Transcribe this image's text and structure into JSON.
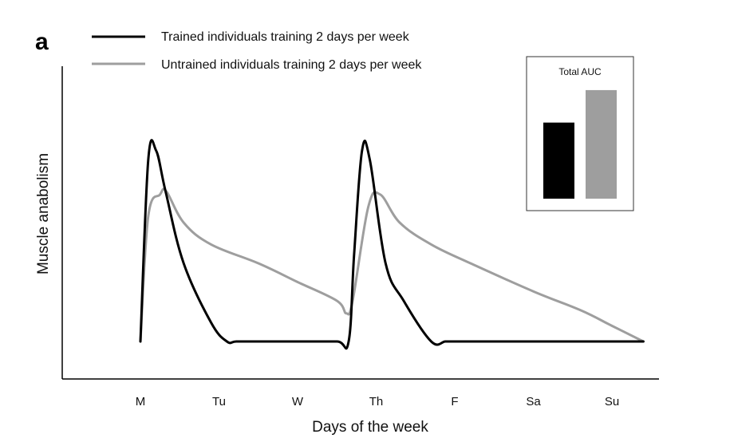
{
  "panel_label": "a",
  "chart_data": [
    {
      "type": "line",
      "title": "",
      "xlabel": "Days of the week",
      "ylabel": "Muscle anabolism",
      "categories": [
        "M",
        "Tu",
        "W",
        "Th",
        "F",
        "Sa",
        "Su"
      ],
      "xlim": [
        0,
        6.4
      ],
      "ylim": [
        0,
        100
      ],
      "grid": false,
      "legend": "top-left",
      "series": [
        {
          "name": "Trained individuals training 2 days per week",
          "color": "#000000",
          "x": [
            0,
            0.1,
            0.2,
            0.32,
            0.55,
            0.9,
            1.1,
            1.22,
            1.5,
            2.0,
            2.5,
            2.65,
            2.72,
            2.82,
            2.92,
            3.12,
            3.35,
            3.7,
            3.88,
            4.0,
            4.5,
            5.0,
            5.5,
            6.0,
            6.4
          ],
          "y": [
            12,
            70,
            73,
            60,
            37,
            18,
            12,
            12,
            12,
            12,
            12,
            12,
            40,
            73,
            70,
            37,
            25,
            12,
            12,
            12,
            12,
            12,
            12,
            12,
            12
          ]
        },
        {
          "name": "Untrained individuals training 2 days per week",
          "color": "#9e9e9e",
          "x": [
            0,
            0.1,
            0.25,
            0.33,
            0.55,
            0.9,
            1.5,
            2.0,
            2.5,
            2.62,
            2.7,
            2.9,
            3.05,
            3.3,
            3.7,
            4.2,
            5.0,
            5.6,
            6.0,
            6.4
          ],
          "y": [
            12,
            52,
            59,
            60,
            50,
            43,
            37,
            31,
            25,
            21,
            25,
            55,
            59,
            50,
            43,
            37,
            28,
            22,
            17,
            12
          ]
        }
      ]
    },
    {
      "type": "bar",
      "title": "Total AUC",
      "categories": [
        "Trained individuals training 2 days per week",
        "Untrained individuals training 2 days per week"
      ],
      "values": [
        89,
        127
      ],
      "colors": [
        "#000000",
        "#9e9e9e"
      ],
      "ylim": [
        0,
        140
      ]
    }
  ]
}
